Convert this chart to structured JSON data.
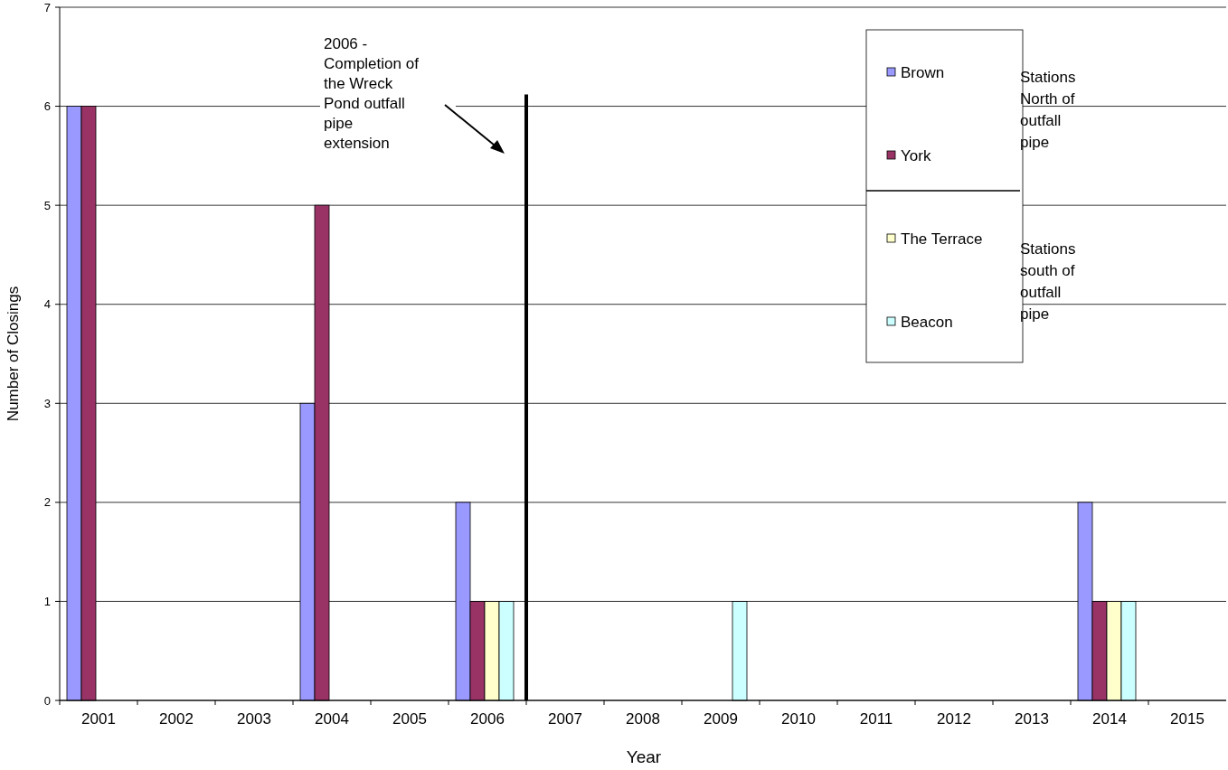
{
  "chart_data": {
    "type": "bar",
    "xlabel": "Year",
    "ylabel": "Number of Closings",
    "categories": [
      "2001",
      "2002",
      "2003",
      "2004",
      "2005",
      "2006",
      "2007",
      "2008",
      "2009",
      "2010",
      "2011",
      "2012",
      "2013",
      "2014",
      "2015"
    ],
    "series": [
      {
        "name": "Brown",
        "color": "#9999ff",
        "values": [
          6,
          0,
          0,
          3,
          0,
          2,
          0,
          0,
          0,
          0,
          0,
          0,
          0,
          2,
          0
        ]
      },
      {
        "name": "York",
        "color": "#993366",
        "values": [
          6,
          0,
          0,
          5,
          0,
          1,
          0,
          0,
          0,
          0,
          0,
          0,
          0,
          1,
          0
        ]
      },
      {
        "name": "The Terrace",
        "color": "#ffffcc",
        "values": [
          0,
          0,
          0,
          0,
          0,
          1,
          0,
          0,
          0,
          0,
          0,
          0,
          0,
          1,
          0
        ]
      },
      {
        "name": "Beacon",
        "color": "#ccffff",
        "values": [
          0,
          0,
          0,
          0,
          0,
          1,
          0,
          0,
          1,
          0,
          0,
          0,
          0,
          1,
          0
        ]
      }
    ],
    "ref_lines": [
      {
        "axis": "x",
        "value": "2006",
        "color": "#000000"
      }
    ],
    "ylim": [
      0,
      7
    ],
    "yticks": [
      0,
      1,
      2,
      3,
      4,
      5,
      6,
      7
    ],
    "grid": "y",
    "legend": "top right",
    "annotations": [
      "2006 - Completion of the Wreck Pond outfall pipe extension",
      "Stations North of outfall pipe",
      "Stations south of outfall pipe"
    ]
  }
}
